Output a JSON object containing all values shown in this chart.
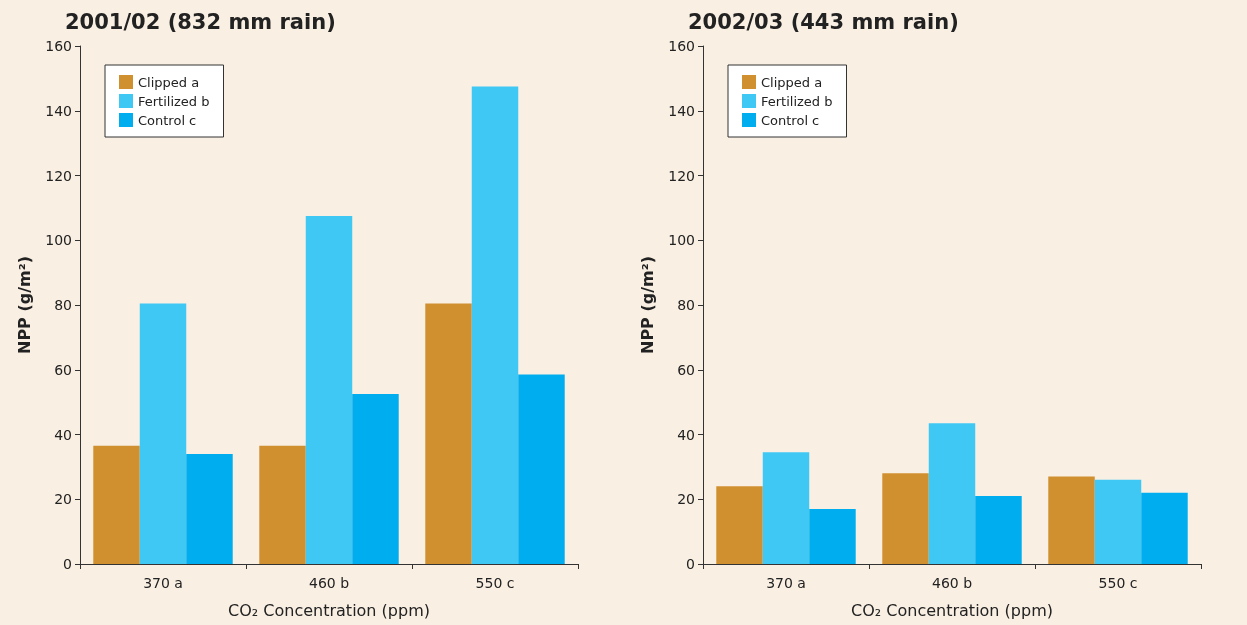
{
  "chart_data": [
    {
      "type": "bar",
      "title": "2001/02 (832 mm rain)",
      "xlabel": "CO₂ Concentration (ppm)",
      "ylabel": "NPP (g/m²)",
      "categories": [
        "370 a",
        "460 b",
        "550 c"
      ],
      "series": [
        {
          "name": "Clipped a",
          "color": "#d09030",
          "values": [
            36.5,
            36.5,
            80.5
          ]
        },
        {
          "name": "Fertilized b",
          "color": "#40c8f4",
          "values": [
            80.5,
            107.5,
            147.5
          ]
        },
        {
          "name": "Control c",
          "color": "#00aeef",
          "values": [
            34,
            52.5,
            58.5
          ]
        }
      ],
      "ylim": [
        0,
        160
      ],
      "yticks": [
        0,
        20,
        40,
        60,
        80,
        100,
        120,
        140,
        160
      ],
      "grid": false,
      "legend": "top left"
    },
    {
      "type": "bar",
      "title": "2002/03 (443 mm rain)",
      "xlabel": "CO₂ Concentration (ppm)",
      "ylabel": "NPP (g/m²)",
      "categories": [
        "370 a",
        "460 b",
        "550 c"
      ],
      "series": [
        {
          "name": "Clipped a",
          "color": "#d09030",
          "values": [
            24,
            28,
            27
          ]
        },
        {
          "name": "Fertilized b",
          "color": "#40c8f4",
          "values": [
            34.5,
            43.5,
            26
          ]
        },
        {
          "name": "Control c",
          "color": "#00aeef",
          "values": [
            17,
            21,
            22
          ]
        }
      ],
      "ylim": [
        0,
        160
      ],
      "yticks": [
        0,
        20,
        40,
        60,
        80,
        100,
        120,
        140,
        160
      ],
      "grid": false,
      "legend": "top left"
    }
  ]
}
